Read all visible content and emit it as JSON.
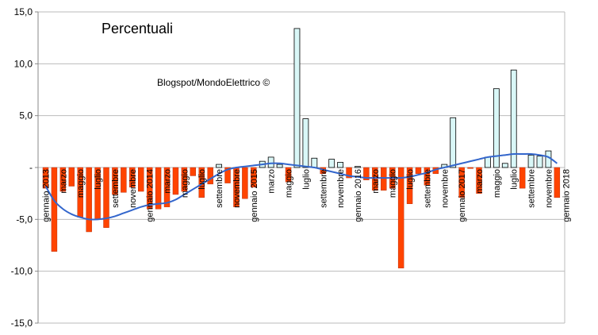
{
  "chart_data": {
    "type": "bar",
    "title": "Percentuali",
    "annotation": "Blogspot/MondoElettrico ©",
    "ylim": [
      -15,
      15
    ],
    "y_ticks": [
      15,
      10,
      5,
      0,
      -5,
      -10,
      -15
    ],
    "y_tick_labels": [
      "15,0",
      "10,0",
      "5,0",
      "-",
      "-5,0",
      "-10,0",
      "-15,0"
    ],
    "grid": true,
    "colors": {
      "positive": "#d9f7f7",
      "negative": "#ff4400",
      "trend": "#3366cc",
      "grid": "#bbbbbb"
    },
    "series": [
      {
        "values": [
          -2.0,
          -8.1,
          -2.3,
          -1.8,
          -4.8,
          -6.2,
          -5.0,
          -5.8,
          -2.6,
          -2.4,
          -1.9,
          -2.3,
          -4.0,
          -4.0,
          -3.8,
          -2.6,
          -2.3,
          -0.8,
          -2.9,
          -1.6,
          0.3,
          -1.5,
          -3.8,
          -3.0,
          -1.9,
          0.6,
          1.0,
          0.3,
          -1.4,
          13.4,
          4.7,
          0.9,
          -0.6,
          0.8,
          0.5,
          -1.0,
          0.1,
          -1.2,
          -2.2,
          -2.2,
          -2.0,
          -9.7,
          -3.5,
          -0.6,
          -1.7,
          -0.6,
          0.3,
          4.8,
          -2.9,
          -0.1,
          -2.5,
          1.0,
          7.6,
          0.4,
          9.4,
          -2.0,
          1.2,
          1.1,
          1.6,
          -2.9
        ]
      }
    ],
    "trend": [
      -1.8,
      -3.2,
      -4.0,
      -4.5,
      -4.8,
      -5.0,
      -5.0,
      -4.9,
      -4.7,
      -4.4,
      -4.1,
      -3.8,
      -3.6,
      -3.5,
      -3.4,
      -3.1,
      -2.6,
      -2.1,
      -1.6,
      -1.1,
      -0.6,
      -0.2,
      0.0,
      0.1,
      0.2,
      0.3,
      0.4,
      0.4,
      0.3,
      0.2,
      0.1,
      0.0,
      -0.2,
      -0.4,
      -0.6,
      -0.8,
      -0.9,
      -1.0,
      -1.0,
      -1.0,
      -1.0,
      -1.0,
      -0.9,
      -0.7,
      -0.5,
      -0.2,
      0.0,
      0.2,
      0.4,
      0.6,
      0.8,
      1.0,
      1.1,
      1.2,
      1.3,
      1.3,
      1.3,
      1.2,
      1.0,
      0.4
    ],
    "x_labels": [
      {
        "i": 0,
        "text": "gennaio 2013"
      },
      {
        "i": 2,
        "text": "marzo"
      },
      {
        "i": 4,
        "text": "maggio"
      },
      {
        "i": 6,
        "text": "luglio"
      },
      {
        "i": 8,
        "text": "settembre"
      },
      {
        "i": 10,
        "text": "novembre"
      },
      {
        "i": 12,
        "text": "gennaio 2014"
      },
      {
        "i": 14,
        "text": "marzo"
      },
      {
        "i": 16,
        "text": "maggio"
      },
      {
        "i": 18,
        "text": "luglio"
      },
      {
        "i": 20,
        "text": "settembre"
      },
      {
        "i": 22,
        "text": "novembre"
      },
      {
        "i": 24,
        "text": "gennaio 2015"
      },
      {
        "i": 26,
        "text": "marzo"
      },
      {
        "i": 28,
        "text": "maggio"
      },
      {
        "i": 30,
        "text": "luglio"
      },
      {
        "i": 32,
        "text": "settembre"
      },
      {
        "i": 34,
        "text": "novembre"
      },
      {
        "i": 36,
        "text": "gennaio 2016"
      },
      {
        "i": 38,
        "text": "marzo"
      },
      {
        "i": 40,
        "text": "maggio"
      },
      {
        "i": 42,
        "text": "luglio"
      },
      {
        "i": 44,
        "text": "settembre"
      },
      {
        "i": 46,
        "text": "novembre"
      },
      {
        "i": 48,
        "text": "gennaio 2017"
      },
      {
        "i": 50,
        "text": "marzo"
      },
      {
        "i": 52,
        "text": "maggio"
      },
      {
        "i": 54,
        "text": "luglio"
      },
      {
        "i": 56,
        "text": "settembre"
      },
      {
        "i": 58,
        "text": "novembre"
      },
      {
        "i": 60,
        "text": "gennaio 2018"
      }
    ]
  }
}
